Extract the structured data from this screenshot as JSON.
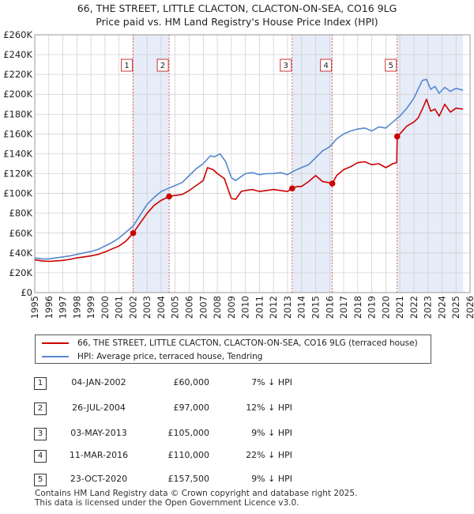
{
  "title_line1": "66, THE STREET, LITTLE CLACTON, CLACTON-ON-SEA, CO16 9LG",
  "title_line2": "Price paid vs. HM Land Registry's House Price Index (HPI)",
  "colors": {
    "price_line": "#cc0000",
    "hpi_line": "#5588cc",
    "shade": "#dde6f6",
    "grid": "#cccccc",
    "marker_line": "#dd4444"
  },
  "chart_data": {
    "type": "line",
    "xlim": [
      1995,
      2026
    ],
    "ylim": [
      0,
      260000
    ],
    "y_ticks": [
      0,
      20000,
      40000,
      60000,
      80000,
      100000,
      120000,
      140000,
      160000,
      180000,
      200000,
      220000,
      240000,
      260000
    ],
    "y_tick_labels": [
      "£0",
      "£20K",
      "£40K",
      "£60K",
      "£80K",
      "£100K",
      "£120K",
      "£140K",
      "£160K",
      "£180K",
      "£200K",
      "£220K",
      "£240K",
      "£260K"
    ],
    "x_ticks": [
      1995,
      1996,
      1997,
      1998,
      1999,
      2000,
      2001,
      2002,
      2003,
      2004,
      2005,
      2006,
      2007,
      2008,
      2009,
      2010,
      2011,
      2012,
      2013,
      2014,
      2015,
      2016,
      2017,
      2018,
      2019,
      2020,
      2021,
      2022,
      2023,
      2024,
      2025,
      2026
    ],
    "x_tick_labels": [
      "1995",
      "1996",
      "1997",
      "1998",
      "1999",
      "2000",
      "2001",
      "2002",
      "2003",
      "2004",
      "2005",
      "2006",
      "2007",
      "2008",
      "2009",
      "2010",
      "2011",
      "2012",
      "2013",
      "2014",
      "2015",
      "2016",
      "2017",
      "2018",
      "2019",
      "2020",
      "2021",
      "2022",
      "2023",
      "2024",
      "2025",
      "2026"
    ],
    "shaded_ranges": [
      [
        2002.01,
        2004.57
      ],
      [
        2013.33,
        2016.19
      ],
      [
        2020.81,
        2025.5
      ]
    ],
    "series": [
      {
        "name": "66, THE STREET, LITTLE CLACTON, CLACTON-ON-SEA, CO16 9LG (terraced house)",
        "x": [
          1995.0,
          1995.5,
          1996.0,
          1996.5,
          1997.0,
          1997.5,
          1998.0,
          1998.5,
          1999.0,
          1999.5,
          2000.0,
          2000.5,
          2001.0,
          2001.5,
          2002.01,
          2002.5,
          2003.0,
          2003.5,
          2004.0,
          2004.57,
          2005.0,
          2005.5,
          2006.0,
          2006.5,
          2007.0,
          2007.3,
          2007.7,
          2008.0,
          2008.5,
          2009.0,
          2009.3,
          2009.7,
          2010.0,
          2010.5,
          2011.0,
          2011.5,
          2012.0,
          2012.5,
          2013.0,
          2013.33,
          2013.7,
          2014.0,
          2014.5,
          2015.0,
          2015.5,
          2015.9,
          2016.19,
          2016.5,
          2017.0,
          2017.5,
          2018.0,
          2018.5,
          2019.0,
          2019.5,
          2020.0,
          2020.5,
          2020.78,
          2020.81,
          2021.0,
          2021.5,
          2022.0,
          2022.3,
          2022.6,
          2022.9,
          2023.2,
          2023.5,
          2023.8,
          2024.2,
          2024.6,
          2025.0,
          2025.5
        ],
        "values": [
          33000,
          32000,
          31500,
          32000,
          32500,
          33500,
          35000,
          36000,
          37000,
          38500,
          41000,
          44000,
          47000,
          52000,
          60000,
          70000,
          80000,
          88000,
          93000,
          97000,
          98000,
          99000,
          103000,
          108000,
          113000,
          126000,
          124000,
          120000,
          115000,
          95000,
          94000,
          102000,
          103000,
          104000,
          102000,
          103000,
          104000,
          103000,
          102000,
          105000,
          107000,
          107000,
          112000,
          118000,
          112000,
          111000,
          110000,
          118000,
          124000,
          127000,
          131000,
          132000,
          129000,
          130000,
          126000,
          130000,
          131000,
          157500,
          160000,
          168000,
          172000,
          176000,
          185000,
          195000,
          183000,
          185000,
          178000,
          190000,
          182000,
          186000,
          185000
        ]
      },
      {
        "name": "HPI: Average price, terraced house, Tendring",
        "x": [
          1995.0,
          1995.5,
          1996.0,
          1996.5,
          1997.0,
          1997.5,
          1998.0,
          1998.5,
          1999.0,
          1999.5,
          2000.0,
          2000.5,
          2001.0,
          2001.5,
          2002.0,
          2002.5,
          2003.0,
          2003.5,
          2004.0,
          2004.5,
          2005.0,
          2005.5,
          2006.0,
          2006.5,
          2007.0,
          2007.5,
          2007.8,
          2008.2,
          2008.6,
          2009.0,
          2009.3,
          2009.7,
          2010.0,
          2010.5,
          2011.0,
          2011.5,
          2012.0,
          2012.5,
          2013.0,
          2013.5,
          2014.0,
          2014.5,
          2015.0,
          2015.5,
          2016.0,
          2016.5,
          2017.0,
          2017.5,
          2018.0,
          2018.5,
          2019.0,
          2019.5,
          2020.0,
          2020.5,
          2021.0,
          2021.5,
          2022.0,
          2022.3,
          2022.6,
          2022.9,
          2023.2,
          2023.5,
          2023.8,
          2024.2,
          2024.6,
          2025.0,
          2025.5
        ],
        "values": [
          35000,
          34000,
          34000,
          35000,
          36000,
          37000,
          38500,
          40000,
          41500,
          43500,
          47000,
          50500,
          55000,
          61000,
          67000,
          78000,
          89000,
          96000,
          102000,
          105000,
          108000,
          111000,
          118000,
          125000,
          130000,
          138000,
          137000,
          140000,
          132000,
          116000,
          113000,
          117000,
          120000,
          121000,
          119000,
          120000,
          120000,
          121000,
          119000,
          123000,
          126000,
          129000,
          136000,
          143000,
          147000,
          155000,
          160000,
          163000,
          165000,
          166000,
          163000,
          167000,
          166000,
          172000,
          178000,
          186000,
          196000,
          205000,
          214000,
          215000,
          205000,
          208000,
          201000,
          207000,
          203000,
          206000,
          204000
        ]
      }
    ],
    "sales": [
      {
        "num": "1",
        "x": 2002.01,
        "price": 60000
      },
      {
        "num": "2",
        "x": 2004.57,
        "price": 97000
      },
      {
        "num": "3",
        "x": 2013.33,
        "price": 105000
      },
      {
        "num": "4",
        "x": 2016.19,
        "price": 110000
      },
      {
        "num": "5",
        "x": 2020.81,
        "price": 157500
      }
    ]
  },
  "legend": {
    "price_label": "66, THE STREET, LITTLE CLACTON, CLACTON-ON-SEA, CO16 9LG (terraced house)",
    "hpi_label": "HPI: Average price, terraced house, Tendring"
  },
  "table": [
    {
      "num": "1",
      "date": "04-JAN-2002",
      "price": "£60,000",
      "hpi": "7% ↓ HPI"
    },
    {
      "num": "2",
      "date": "26-JUL-2004",
      "price": "£97,000",
      "hpi": "12% ↓ HPI"
    },
    {
      "num": "3",
      "date": "03-MAY-2013",
      "price": "£105,000",
      "hpi": "9% ↓ HPI"
    },
    {
      "num": "4",
      "date": "11-MAR-2016",
      "price": "£110,000",
      "hpi": "22% ↓ HPI"
    },
    {
      "num": "5",
      "date": "23-OCT-2020",
      "price": "£157,500",
      "hpi": "9% ↓ HPI"
    }
  ],
  "footer": {
    "line1": "Contains HM Land Registry data © Crown copyright and database right 2025.",
    "line2": "This data is licensed under the Open Government Licence v3.0."
  }
}
